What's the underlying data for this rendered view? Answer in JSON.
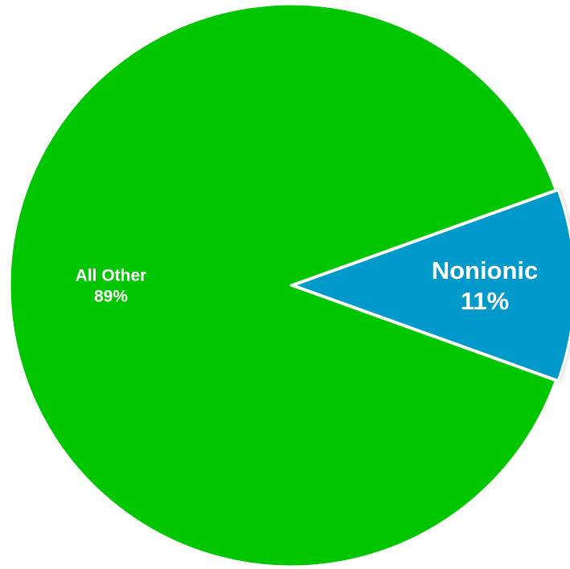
{
  "chart_data": {
    "type": "pie",
    "slices": [
      {
        "label": "Nonionic",
        "value": 11,
        "value_label": "11%",
        "color": "#0099CC"
      },
      {
        "label": "All Other",
        "value": 89,
        "value_label": "89%",
        "color": "#00C600"
      }
    ],
    "legend": "none",
    "start_at": "right",
    "direction": "counterclockwise",
    "outline_color": "#ffffff"
  }
}
